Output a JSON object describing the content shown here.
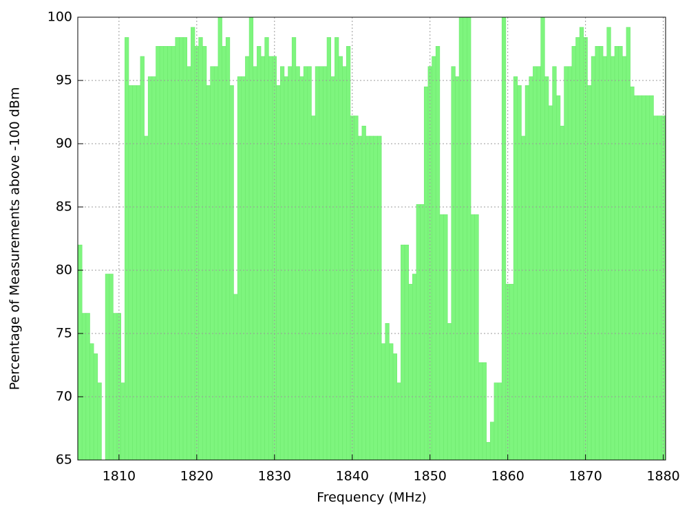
{
  "chart_data": {
    "type": "bar",
    "xlabel": "Frequency (MHz)",
    "ylabel": "Percentage of Measurements above -100 dBm",
    "color": "#7ef57e",
    "grid": true,
    "xlim": [
      1804.7,
      1880.3
    ],
    "ylim": [
      65,
      100
    ],
    "xticks": [
      1810,
      1820,
      1830,
      1840,
      1850,
      1860,
      1870,
      1880
    ],
    "yticks": [
      65,
      70,
      75,
      80,
      85,
      90,
      95,
      100
    ],
    "x": [
      1805,
      1805.5,
      1806,
      1806.5,
      1807,
      1807.5,
      1808,
      1808.5,
      1809,
      1809.5,
      1810,
      1810.5,
      1811,
      1811.5,
      1812,
      1812.5,
      1813,
      1813.5,
      1814,
      1814.5,
      1815,
      1815.5,
      1816,
      1816.5,
      1817,
      1817.5,
      1818,
      1818.5,
      1819,
      1819.5,
      1820,
      1820.5,
      1821,
      1821.5,
      1822,
      1822.5,
      1823,
      1823.5,
      1824,
      1824.5,
      1825,
      1825.5,
      1826,
      1826.5,
      1827,
      1827.5,
      1828,
      1828.5,
      1829,
      1829.5,
      1830,
      1830.5,
      1831,
      1831.5,
      1832,
      1832.5,
      1833,
      1833.5,
      1834,
      1834.5,
      1835,
      1835.5,
      1836,
      1836.5,
      1837,
      1837.5,
      1838,
      1838.5,
      1839,
      1839.5,
      1840,
      1840.5,
      1841,
      1841.5,
      1842,
      1842.5,
      1843,
      1843.5,
      1844,
      1844.5,
      1845,
      1845.5,
      1846,
      1846.5,
      1847,
      1847.5,
      1848,
      1848.5,
      1849,
      1849.5,
      1850,
      1850.5,
      1851,
      1851.5,
      1852,
      1852.5,
      1853,
      1853.5,
      1854,
      1854.5,
      1855,
      1855.5,
      1856,
      1856.5,
      1857,
      1857.5,
      1858,
      1858.5,
      1859,
      1859.5,
      1860,
      1860.5,
      1861,
      1861.5,
      1862,
      1862.5,
      1863,
      1863.5,
      1864,
      1864.5,
      1865,
      1865.5,
      1866,
      1866.5,
      1867,
      1867.5,
      1868,
      1868.5,
      1869,
      1869.5,
      1870,
      1870.5,
      1871,
      1871.5,
      1872,
      1872.5,
      1873,
      1873.5,
      1874,
      1874.5,
      1875,
      1875.5,
      1876,
      1876.5,
      1877,
      1877.5,
      1878,
      1878.5,
      1879,
      1879.5,
      1880
    ],
    "values": [
      82,
      76.6,
      76.6,
      74.2,
      73.4,
      71.1,
      65,
      79.7,
      79.7,
      76.6,
      76.6,
      71.1,
      98.4,
      94.6,
      94.6,
      94.6,
      96.9,
      90.6,
      95.3,
      95.3,
      97.7,
      97.7,
      97.7,
      97.7,
      97.7,
      98.4,
      98.4,
      98.4,
      96.1,
      99.2,
      97.7,
      98.4,
      97.7,
      94.6,
      96.1,
      96.1,
      100,
      97.7,
      98.4,
      94.6,
      78.1,
      95.3,
      95.3,
      96.9,
      100,
      96.1,
      97.7,
      96.9,
      98.4,
      96.9,
      96.9,
      94.6,
      96.1,
      95.3,
      96.1,
      98.4,
      96.1,
      95.3,
      96.1,
      96.1,
      92.2,
      96.1,
      96.1,
      96.1,
      98.4,
      95.3,
      98.4,
      96.9,
      96.1,
      97.7,
      92.2,
      92.2,
      90.6,
      91.4,
      90.6,
      90.6,
      90.6,
      90.6,
      74.2,
      75.8,
      74.2,
      73.4,
      71.1,
      82,
      82,
      78.9,
      79.7,
      85.2,
      85.2,
      94.5,
      96.1,
      96.9,
      97.7,
      84.4,
      84.4,
      75.8,
      96.1,
      95.3,
      100,
      100,
      100,
      84.4,
      84.4,
      72.7,
      72.7,
      66.4,
      68,
      71.1,
      71.1,
      100,
      78.9,
      78.9,
      95.3,
      94.6,
      90.6,
      94.6,
      95.3,
      96.1,
      96.1,
      100,
      95.3,
      93,
      96.1,
      93.8,
      91.4,
      96.1,
      96.1,
      97.7,
      98.4,
      99.2,
      98.4,
      94.6,
      96.9,
      97.7,
      97.7,
      96.9,
      99.2,
      96.9,
      97.7,
      97.7,
      96.9,
      99.2,
      94.5,
      93.8,
      93.8,
      93.8,
      93.8,
      93.8,
      92.2,
      92.2,
      92.2
    ]
  }
}
